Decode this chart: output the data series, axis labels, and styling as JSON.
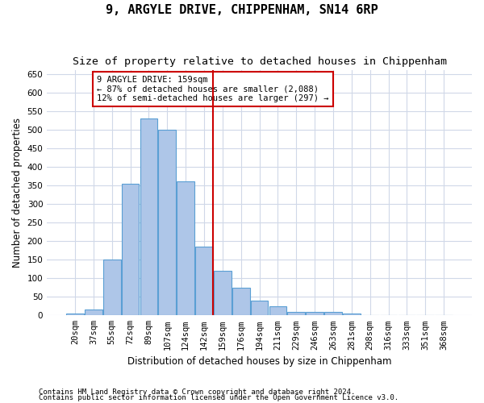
{
  "title": "9, ARGYLE DRIVE, CHIPPENHAM, SN14 6RP",
  "subtitle": "Size of property relative to detached houses in Chippenham",
  "xlabel": "Distribution of detached houses by size in Chippenham",
  "ylabel": "Number of detached properties",
  "footnote1": "Contains HM Land Registry data © Crown copyright and database right 2024.",
  "footnote2": "Contains public sector information licensed under the Open Government Licence v3.0.",
  "categories": [
    "20sqm",
    "37sqm",
    "55sqm",
    "72sqm",
    "89sqm",
    "107sqm",
    "124sqm",
    "142sqm",
    "159sqm",
    "176sqm",
    "194sqm",
    "211sqm",
    "229sqm",
    "246sqm",
    "263sqm",
    "281sqm",
    "298sqm",
    "316sqm",
    "333sqm",
    "351sqm",
    "368sqm"
  ],
  "values": [
    5,
    15,
    150,
    355,
    530,
    500,
    360,
    185,
    120,
    75,
    40,
    25,
    10,
    10,
    10,
    5,
    0,
    0,
    0,
    0,
    0
  ],
  "bar_color": "#aec6e8",
  "bar_edge_color": "#5a9fd4",
  "red_line_index": 8,
  "annotation_line1": "9 ARGYLE DRIVE: 159sqm",
  "annotation_line2": "← 87% of detached houses are smaller (2,088)",
  "annotation_line3": "12% of semi-detached houses are larger (297) →",
  "annotation_box_color": "#ffffff",
  "annotation_box_edge": "#cc0000",
  "red_line_color": "#cc0000",
  "ylim": [
    0,
    660
  ],
  "yticks": [
    0,
    50,
    100,
    150,
    200,
    250,
    300,
    350,
    400,
    450,
    500,
    550,
    600,
    650
  ],
  "background_color": "#ffffff",
  "grid_color": "#d0d8e8",
  "title_fontsize": 11,
  "subtitle_fontsize": 9.5,
  "axis_label_fontsize": 8.5,
  "tick_fontsize": 7.5,
  "footnote_fontsize": 6.5
}
